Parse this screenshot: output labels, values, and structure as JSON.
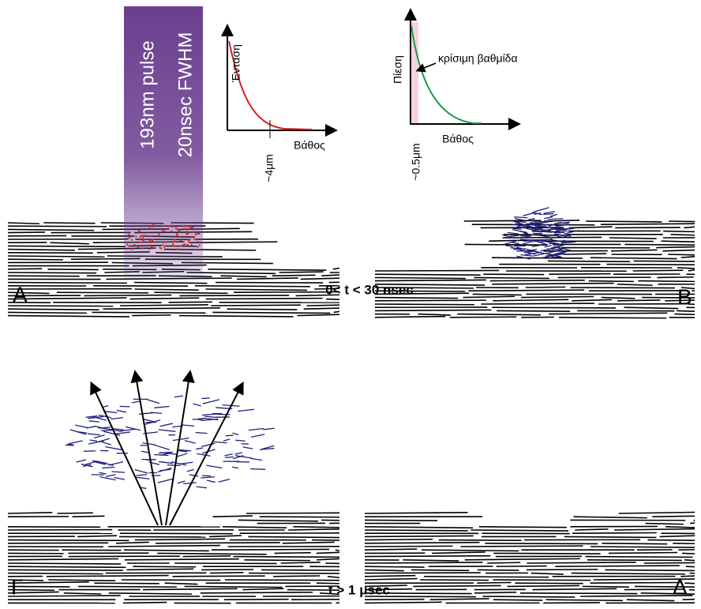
{
  "pulse": {
    "lines": [
      "193nm pulse",
      "20nsec FWHM"
    ]
  },
  "intensity_plot": {
    "y_label": "Ένταση",
    "x_label": "Βάθος",
    "depth_label": "~4μm"
  },
  "pressure_plot": {
    "y_label": "Πίεση",
    "x_label": "Βάθος",
    "depth_label": "~0.5μm",
    "annotation": "κρίσιμη βαθμίδα"
  },
  "panels": [
    {
      "label": "A"
    },
    {
      "label": "B"
    },
    {
      "label": "Γ"
    },
    {
      "label": "Δ"
    }
  ],
  "time_labels": [
    "0< t < 30 nsec",
    "t > 1 μsec"
  ]
}
